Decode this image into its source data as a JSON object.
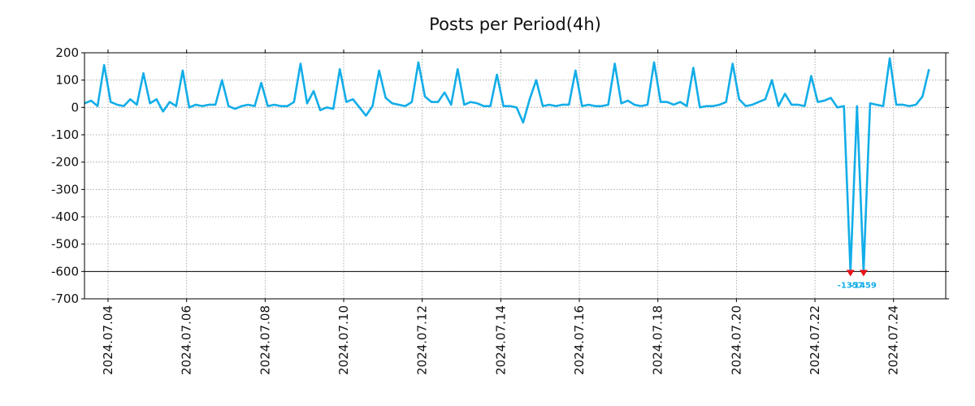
{
  "chart_data": {
    "type": "line",
    "title": "Posts per Period(4h)",
    "xlabel": "",
    "ylabel": "",
    "ylim": [
      -700,
      200
    ],
    "xlim": [
      3.4,
      25.33
    ],
    "grid": true,
    "clip_value": -600,
    "y_ticks": [
      200,
      100,
      0,
      -100,
      -200,
      -300,
      -400,
      -500,
      -600,
      -700
    ],
    "y_tick_labels": [
      "200",
      "100",
      "0",
      "-100",
      "-200",
      "-300",
      "-400",
      "-500",
      "-600",
      "-700"
    ],
    "x_ticks": [
      4,
      6,
      8,
      10,
      12,
      14,
      16,
      18,
      20,
      22,
      24
    ],
    "x_tick_labels": [
      "2024.07.04",
      "2024.07.06",
      "2024.07.08",
      "2024.07.10",
      "2024.07.12",
      "2024.07.14",
      "2024.07.16",
      "2024.07.18",
      "2024.07.20",
      "2024.07.22",
      "2024.07.24"
    ],
    "series": [
      {
        "name": "Posts",
        "color": "#12ade8",
        "start_day": 3.4,
        "step_days": 0.1667,
        "values": [
          15,
          25,
          5,
          155,
          20,
          10,
          5,
          30,
          10,
          125,
          15,
          30,
          -15,
          20,
          5,
          135,
          0,
          10,
          5,
          10,
          10,
          100,
          5,
          -5,
          5,
          10,
          5,
          90,
          5,
          10,
          5,
          5,
          20,
          160,
          15,
          60,
          -10,
          0,
          -5,
          140,
          20,
          30,
          0,
          -30,
          5,
          135,
          35,
          15,
          10,
          5,
          20,
          165,
          40,
          20,
          20,
          55,
          10,
          140,
          10,
          20,
          15,
          5,
          5,
          120,
          5,
          5,
          0,
          -55,
          30,
          100,
          5,
          10,
          5,
          10,
          10,
          135,
          5,
          10,
          5,
          5,
          10,
          160,
          15,
          25,
          10,
          5,
          10,
          165,
          20,
          20,
          10,
          20,
          5,
          145,
          0,
          5,
          5,
          10,
          20,
          160,
          30,
          5,
          10,
          20,
          30,
          100,
          5,
          50,
          10,
          10,
          5,
          115,
          20,
          25,
          35,
          0,
          5,
          -1357,
          5,
          -1459,
          15,
          10,
          5,
          180,
          10,
          10,
          5,
          10,
          40,
          140
        ]
      }
    ],
    "annotations": [
      {
        "x_index": 117,
        "text": "-1357",
        "color": "#12ade8"
      },
      {
        "x_index": 119,
        "text": "-1459",
        "color": "#12ade8"
      }
    ],
    "marker_color": "#e8141b"
  }
}
